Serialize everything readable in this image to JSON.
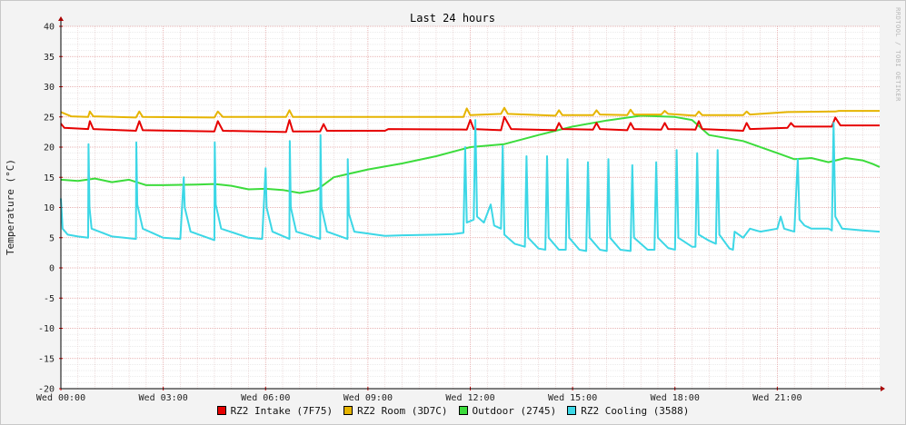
{
  "chart_data": {
    "type": "line",
    "title": "Last 24 hours",
    "ylabel": "Temperature (°C)",
    "watermark": "RRDTOOL / TOBI OETIKER",
    "ylim": [
      -20,
      40
    ],
    "yticks": [
      -20,
      -15,
      -10,
      -5,
      0,
      5,
      10,
      15,
      20,
      25,
      30,
      35,
      40
    ],
    "xlim": [
      0,
      24
    ],
    "xticks": [
      {
        "x": 0,
        "label": "Wed 00:00"
      },
      {
        "x": 3,
        "label": "Wed 03:00"
      },
      {
        "x": 6,
        "label": "Wed 06:00"
      },
      {
        "x": 9,
        "label": "Wed 09:00"
      },
      {
        "x": 12,
        "label": "Wed 12:00"
      },
      {
        "x": 15,
        "label": "Wed 15:00"
      },
      {
        "x": 18,
        "label": "Wed 18:00"
      },
      {
        "x": 21,
        "label": "Wed 21:00"
      }
    ],
    "grid": true,
    "legend_position": "bottom",
    "series": [
      {
        "name": "RZ2 Intake (7F75)",
        "color": "#e60000",
        "points": [
          [
            0,
            23.9
          ],
          [
            0.1,
            23.2
          ],
          [
            0.8,
            23.0
          ],
          [
            0.85,
            24.3
          ],
          [
            0.95,
            23.0
          ],
          [
            2.2,
            22.7
          ],
          [
            2.3,
            24.3
          ],
          [
            2.4,
            22.8
          ],
          [
            4.5,
            22.6
          ],
          [
            4.6,
            24.3
          ],
          [
            4.75,
            22.7
          ],
          [
            6.6,
            22.5
          ],
          [
            6.7,
            24.5
          ],
          [
            6.8,
            22.6
          ],
          [
            7.6,
            22.6
          ],
          [
            7.7,
            23.8
          ],
          [
            7.8,
            22.7
          ],
          [
            9.5,
            22.7
          ],
          [
            9.6,
            23.0
          ],
          [
            11.9,
            22.9
          ],
          [
            12.0,
            24.5
          ],
          [
            12.1,
            23.0
          ],
          [
            12.9,
            22.8
          ],
          [
            13.0,
            25.0
          ],
          [
            13.2,
            23.0
          ],
          [
            14.5,
            22.8
          ],
          [
            14.6,
            24.0
          ],
          [
            14.7,
            23.0
          ],
          [
            15.6,
            22.9
          ],
          [
            15.7,
            24.0
          ],
          [
            15.8,
            23.0
          ],
          [
            16.6,
            22.8
          ],
          [
            16.7,
            24.0
          ],
          [
            16.8,
            23.0
          ],
          [
            17.6,
            22.9
          ],
          [
            17.7,
            24.0
          ],
          [
            17.8,
            23.0
          ],
          [
            18.6,
            22.9
          ],
          [
            18.7,
            24.3
          ],
          [
            18.8,
            23.0
          ],
          [
            20.0,
            22.7
          ],
          [
            20.1,
            24.0
          ],
          [
            20.2,
            23.0
          ],
          [
            21.3,
            23.2
          ],
          [
            21.4,
            24.0
          ],
          [
            21.5,
            23.4
          ],
          [
            22.6,
            23.4
          ],
          [
            22.7,
            24.9
          ],
          [
            22.85,
            23.6
          ],
          [
            24,
            23.6
          ]
        ]
      },
      {
        "name": "RZ2 Room (3D7C)",
        "color": "#e6b400",
        "points": [
          [
            0,
            25.8
          ],
          [
            0.3,
            25.1
          ],
          [
            0.8,
            25.0
          ],
          [
            0.85,
            25.9
          ],
          [
            0.95,
            25.1
          ],
          [
            2.2,
            24.9
          ],
          [
            2.3,
            25.9
          ],
          [
            2.4,
            25.0
          ],
          [
            4.5,
            24.9
          ],
          [
            4.6,
            25.9
          ],
          [
            4.75,
            25.0
          ],
          [
            6.6,
            25.0
          ],
          [
            6.7,
            26.1
          ],
          [
            6.8,
            25.0
          ],
          [
            9.5,
            25.0
          ],
          [
            11.8,
            25.0
          ],
          [
            11.9,
            26.4
          ],
          [
            12.0,
            25.3
          ],
          [
            12.9,
            25.5
          ],
          [
            13.0,
            26.5
          ],
          [
            13.1,
            25.5
          ],
          [
            14.5,
            25.2
          ],
          [
            14.6,
            26.1
          ],
          [
            14.7,
            25.3
          ],
          [
            15.6,
            25.3
          ],
          [
            15.7,
            26.1
          ],
          [
            15.8,
            25.4
          ],
          [
            16.6,
            25.3
          ],
          [
            16.7,
            26.2
          ],
          [
            16.8,
            25.4
          ],
          [
            17.6,
            25.4
          ],
          [
            17.7,
            26.0
          ],
          [
            17.8,
            25.5
          ],
          [
            18.6,
            25.2
          ],
          [
            18.7,
            25.9
          ],
          [
            18.8,
            25.3
          ],
          [
            20.0,
            25.3
          ],
          [
            20.1,
            25.9
          ],
          [
            20.2,
            25.4
          ],
          [
            21.3,
            25.8
          ],
          [
            22.7,
            25.9
          ],
          [
            22.8,
            26.0
          ],
          [
            24,
            26.0
          ]
        ]
      },
      {
        "name": "Outdoor (2745)",
        "color": "#3cdc3c",
        "points": [
          [
            0,
            14.6
          ],
          [
            0.5,
            14.4
          ],
          [
            1.0,
            14.8
          ],
          [
            1.5,
            14.2
          ],
          [
            2.0,
            14.6
          ],
          [
            2.5,
            13.7
          ],
          [
            3.0,
            13.7
          ],
          [
            4.0,
            13.8
          ],
          [
            4.5,
            13.9
          ],
          [
            5.0,
            13.6
          ],
          [
            5.5,
            13.0
          ],
          [
            6.0,
            13.1
          ],
          [
            6.5,
            12.9
          ],
          [
            7.0,
            12.4
          ],
          [
            7.5,
            12.9
          ],
          [
            8.0,
            15.0
          ],
          [
            9.0,
            16.3
          ],
          [
            10.0,
            17.3
          ],
          [
            11.0,
            18.5
          ],
          [
            12.0,
            20.0
          ],
          [
            13.0,
            20.5
          ],
          [
            14.0,
            22.0
          ],
          [
            15.0,
            23.4
          ],
          [
            16.0,
            24.4
          ],
          [
            17.0,
            25.2
          ],
          [
            18.0,
            25.0
          ],
          [
            18.5,
            24.5
          ],
          [
            19.0,
            22.0
          ],
          [
            20.0,
            21.0
          ],
          [
            21.0,
            19.0
          ],
          [
            21.5,
            18.0
          ],
          [
            22.0,
            18.2
          ],
          [
            22.5,
            17.5
          ],
          [
            23.0,
            18.2
          ],
          [
            23.5,
            17.8
          ],
          [
            23.8,
            17.2
          ],
          [
            24,
            16.7
          ]
        ]
      },
      {
        "name": "RZ2 Cooling (3588)",
        "color": "#3cd7e6",
        "points": [
          [
            0,
            11.5
          ],
          [
            0.05,
            6.5
          ],
          [
            0.2,
            5.5
          ],
          [
            0.5,
            5.2
          ],
          [
            0.8,
            5.0
          ],
          [
            0.81,
            20.5
          ],
          [
            0.84,
            10.0
          ],
          [
            0.9,
            6.5
          ],
          [
            1.5,
            5.2
          ],
          [
            2.2,
            4.8
          ],
          [
            2.21,
            20.8
          ],
          [
            2.24,
            10.5
          ],
          [
            2.4,
            6.5
          ],
          [
            3.0,
            5.0
          ],
          [
            3.5,
            4.8
          ],
          [
            3.6,
            15.0
          ],
          [
            3.63,
            10.0
          ],
          [
            3.8,
            6.0
          ],
          [
            4.5,
            4.6
          ],
          [
            4.51,
            20.8
          ],
          [
            4.54,
            10.5
          ],
          [
            4.7,
            6.5
          ],
          [
            5.5,
            5.0
          ],
          [
            5.9,
            4.8
          ],
          [
            6.0,
            16.5
          ],
          [
            6.03,
            10.0
          ],
          [
            6.2,
            6.0
          ],
          [
            6.7,
            4.8
          ],
          [
            6.71,
            21.0
          ],
          [
            6.74,
            10.0
          ],
          [
            6.9,
            6.0
          ],
          [
            7.6,
            4.8
          ],
          [
            7.61,
            22.0
          ],
          [
            7.64,
            10.0
          ],
          [
            7.8,
            6.0
          ],
          [
            8.4,
            4.8
          ],
          [
            8.41,
            18.0
          ],
          [
            8.44,
            9.0
          ],
          [
            8.6,
            6.0
          ],
          [
            9.5,
            5.3
          ],
          [
            10.0,
            5.4
          ],
          [
            11.0,
            5.5
          ],
          [
            11.5,
            5.6
          ],
          [
            11.8,
            5.8
          ],
          [
            11.85,
            20.0
          ],
          [
            11.9,
            7.5
          ],
          [
            12.1,
            8.0
          ],
          [
            12.15,
            24.5
          ],
          [
            12.2,
            8.5
          ],
          [
            12.4,
            7.5
          ],
          [
            12.6,
            10.5
          ],
          [
            12.7,
            7.0
          ],
          [
            12.9,
            6.5
          ],
          [
            12.95,
            20.2
          ],
          [
            13.0,
            5.5
          ],
          [
            13.3,
            4.0
          ],
          [
            13.6,
            3.5
          ],
          [
            13.65,
            18.5
          ],
          [
            13.7,
            5.0
          ],
          [
            14.0,
            3.2
          ],
          [
            14.2,
            3.0
          ],
          [
            14.25,
            18.5
          ],
          [
            14.3,
            5.0
          ],
          [
            14.6,
            3.0
          ],
          [
            14.8,
            3.0
          ],
          [
            14.85,
            18.0
          ],
          [
            14.9,
            5.0
          ],
          [
            15.2,
            3.0
          ],
          [
            15.4,
            2.8
          ],
          [
            15.45,
            17.5
          ],
          [
            15.5,
            5.0
          ],
          [
            15.8,
            3.0
          ],
          [
            16.0,
            2.8
          ],
          [
            16.05,
            18.0
          ],
          [
            16.1,
            5.0
          ],
          [
            16.4,
            3.0
          ],
          [
            16.7,
            2.8
          ],
          [
            16.75,
            17.0
          ],
          [
            16.8,
            5.0
          ],
          [
            17.2,
            3.0
          ],
          [
            17.4,
            3.0
          ],
          [
            17.45,
            17.5
          ],
          [
            17.5,
            5.0
          ],
          [
            17.8,
            3.3
          ],
          [
            18.0,
            3.0
          ],
          [
            18.05,
            19.5
          ],
          [
            18.1,
            5.0
          ],
          [
            18.5,
            3.5
          ],
          [
            18.6,
            3.5
          ],
          [
            18.65,
            19.0
          ],
          [
            18.7,
            5.5
          ],
          [
            19.0,
            4.5
          ],
          [
            19.2,
            4.0
          ],
          [
            19.25,
            19.5
          ],
          [
            19.3,
            5.5
          ],
          [
            19.6,
            3.2
          ],
          [
            19.7,
            3.0
          ],
          [
            19.75,
            6.0
          ],
          [
            20.0,
            5.0
          ],
          [
            20.2,
            6.5
          ],
          [
            20.5,
            6.0
          ],
          [
            21.0,
            6.5
          ],
          [
            21.1,
            8.5
          ],
          [
            21.2,
            6.5
          ],
          [
            21.5,
            6.0
          ],
          [
            21.6,
            18.0
          ],
          [
            21.65,
            8.0
          ],
          [
            21.8,
            7.0
          ],
          [
            22.0,
            6.5
          ],
          [
            22.5,
            6.5
          ],
          [
            22.6,
            6.2
          ],
          [
            22.65,
            24.0
          ],
          [
            22.7,
            8.5
          ],
          [
            22.9,
            6.5
          ],
          [
            23.5,
            6.2
          ],
          [
            24,
            6.0
          ]
        ]
      }
    ]
  }
}
